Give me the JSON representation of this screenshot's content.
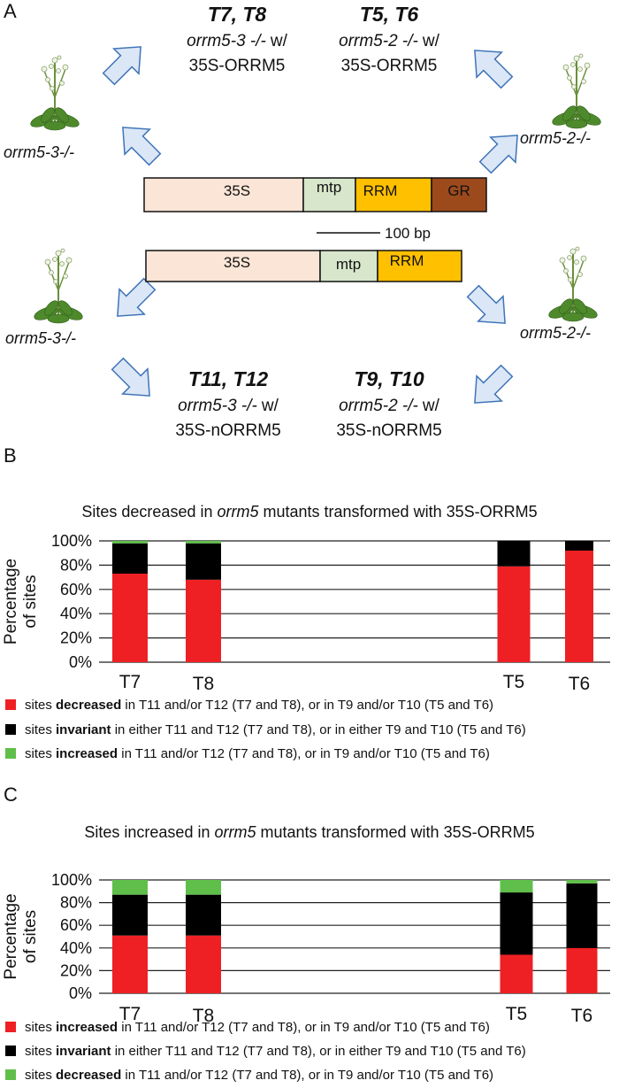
{
  "panel_a": {
    "label": "A",
    "groups": [
      {
        "title": "T7, T8",
        "genotype": "orrm5-3 -/-",
        "joiner": "w/",
        "construct": "35S-ORRM5"
      },
      {
        "title": "T5, T6",
        "genotype": "orrm5-2 -/-",
        "joiner": "w/",
        "construct": "35S-ORRM5"
      },
      {
        "title": "T11, T12",
        "genotype": "orrm5-3 -/-",
        "joiner": "w/",
        "construct": "35S-nORRM5"
      },
      {
        "title": "T9, T10",
        "genotype": "orrm5-2 -/-",
        "joiner": "w/",
        "construct": "35S-nORRM5"
      }
    ],
    "plants": [
      "orrm5-3-/-",
      "orrm5-2-/-",
      "orrm5-3-/-",
      "orrm5-2-/-"
    ],
    "constructs": [
      [
        "35S",
        "mtp",
        "RRM",
        "GR"
      ],
      [
        "35S",
        "mtp",
        "RRM"
      ]
    ],
    "scale_bar": "100 bp"
  },
  "chart_data": [
    {
      "type": "stacked_bar",
      "panel_label": "B",
      "title": [
        "Sites decreased in ",
        "orrm5",
        " mutants transformed with 35S-ORRM5"
      ],
      "y_label": [
        "Percentage",
        "of sites"
      ],
      "categories": [
        "T7",
        "T8",
        "T5",
        "T6"
      ],
      "series": [
        {
          "name": [
            "sites ",
            "decreased",
            " in T11 and/or T12 (T7 and T8), or in T9 and/or T10 (T5 and T6)"
          ],
          "color": "#ee2024",
          "values": [
            73,
            68,
            79,
            92
          ]
        },
        {
          "name": [
            "sites ",
            "invariant",
            " in either T11 and T12 (T7 and T8), or in either T9 and T10 (T5 and T6)"
          ],
          "color": "#000000",
          "values": [
            25,
            30,
            21,
            8
          ]
        },
        {
          "name": [
            "sites ",
            "increased",
            " in T11 and/or T12 (T7 and T8), or in T9 and/or T10 (T5 and T6)"
          ],
          "color": "#5fbf4a",
          "values": [
            2,
            2,
            0,
            0
          ]
        }
      ],
      "ylim": [
        0,
        100
      ],
      "yticks": [
        {
          "value": 0,
          "label": "0%"
        },
        {
          "value": 20,
          "label": "20%"
        },
        {
          "value": 40,
          "label": "40%"
        },
        {
          "value": 60,
          "label": "60%"
        },
        {
          "value": 80,
          "label": "80%"
        },
        {
          "value": 100,
          "label": "100%"
        }
      ],
      "grid": true
    },
    {
      "type": "stacked_bar",
      "panel_label": "C",
      "title": [
        "Sites increased in ",
        "orrm5",
        " mutants transformed with 35S-ORRM5"
      ],
      "y_label": [
        "Percentage",
        "of sites"
      ],
      "categories": [
        "T7",
        "T8",
        "T5",
        "T6"
      ],
      "series": [
        {
          "name": [
            "sites ",
            "increased",
            " in T11 and/or T12 (T7 and T8), or in T9 and/or T10 (T5 and T6)"
          ],
          "color": "#ee2024",
          "values": [
            51,
            51,
            34,
            40
          ]
        },
        {
          "name": [
            "sites ",
            "invariant",
            " in either T11 and T12 (T7 and T8), or in either T9 and T10 (T5 and T6)"
          ],
          "color": "#000000",
          "values": [
            36,
            36,
            55,
            57
          ]
        },
        {
          "name": [
            "sites ",
            "decreased",
            " in T11 and/or T12 (T7 and T8), or in T9 and/or T10 (T5 and T6)"
          ],
          "color": "#5fbf4a",
          "values": [
            13,
            13,
            11,
            3
          ]
        }
      ],
      "ylim": [
        0,
        100
      ],
      "yticks": [
        {
          "value": 0,
          "label": "0%"
        },
        {
          "value": 20,
          "label": "20%"
        },
        {
          "value": 40,
          "label": "40%"
        },
        {
          "value": 60,
          "label": "60%"
        },
        {
          "value": 80,
          "label": "80%"
        },
        {
          "value": 100,
          "label": "100%"
        }
      ],
      "grid": true
    }
  ]
}
